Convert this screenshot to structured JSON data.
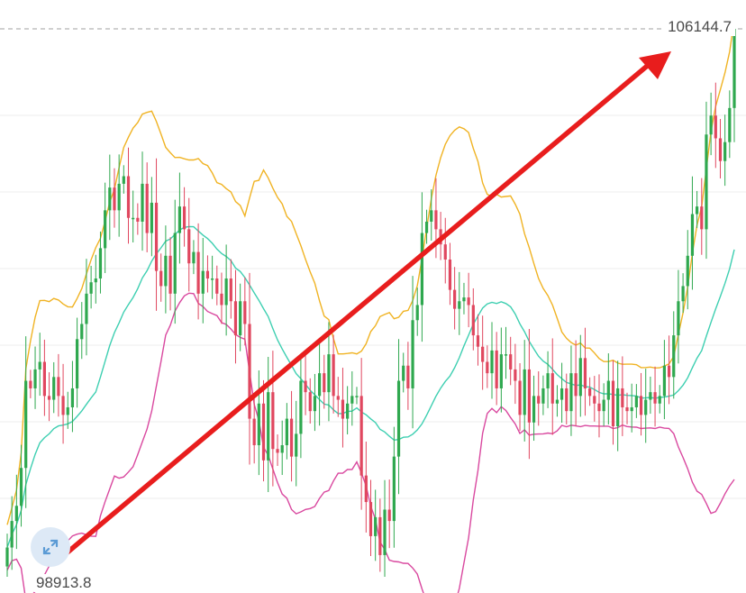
{
  "labels": {
    "high_price": "106144.7",
    "low_price": "98913.8"
  },
  "colors": {
    "up": "#2fa84f",
    "down": "#e0475f",
    "upper_band": "#f0b323",
    "middle_band": "#3ecfb1",
    "lower_band": "#d9489f",
    "arrow": "#e81d1d",
    "grid": "#ececec",
    "price_line": "#a0a0a0",
    "expand_icon": "#5b9bd5"
  },
  "icons": {
    "expand": "expand-arrows-icon"
  },
  "chart_data": {
    "type": "candlestick",
    "y_range": [
      98913.8,
      106144.7
    ],
    "highlighted_prices": {
      "high": 106144.7,
      "low": 98913.8
    },
    "close_path": [
      99300,
      99650,
      99850,
      100350,
      101500,
      101400,
      101650,
      101750,
      101300,
      101250,
      101550,
      101300,
      101050,
      101150,
      101400,
      102050,
      102250,
      102650,
      102800,
      102850,
      103250,
      103750,
      104050,
      103750,
      104100,
      104200,
      103650,
      103650,
      103600,
      104100,
      103450,
      103850,
      102950,
      102750,
      103150,
      102650,
      103450,
      103800,
      103500,
      103050,
      103200,
      102650,
      102950,
      102850,
      102850,
      102650,
      102500,
      102850,
      102550,
      102100,
      102550,
      102250,
      101000,
      100650,
      101200,
      100450,
      101350,
      100600,
      100550,
      100650,
      101000,
      100500,
      100800,
      101500,
      101350,
      101100,
      101300,
      101600,
      101350,
      101850,
      101300,
      101250,
      101000,
      101200,
      101300,
      101300,
      100250,
      99900,
      99450,
      99700,
      99200,
      99800,
      99650,
      100500,
      101500,
      101700,
      101400,
      102300,
      102500,
      103450,
      103600,
      103750,
      103500,
      103300,
      103100,
      102700,
      102450,
      102550,
      102600,
      102500,
      102100,
      101950,
      101750,
      101600,
      101900,
      101400,
      101850,
      101850,
      101650,
      101500,
      101050,
      101650,
      100950,
      101300,
      101200,
      101400,
      101600,
      101200,
      101250,
      101400,
      101100,
      101600,
      101300,
      101800,
      101400,
      101300,
      101200,
      101100,
      101250,
      101500,
      100900,
      101400,
      101150,
      101100,
      101150,
      101300,
      101050,
      101250,
      101350,
      101200,
      101300,
      101700,
      101550,
      102100,
      102550,
      102750,
      103150,
      103700,
      103800,
      103500,
      104750,
      105000,
      104700,
      104400,
      104650,
      105100,
      106144.7
    ]
  }
}
